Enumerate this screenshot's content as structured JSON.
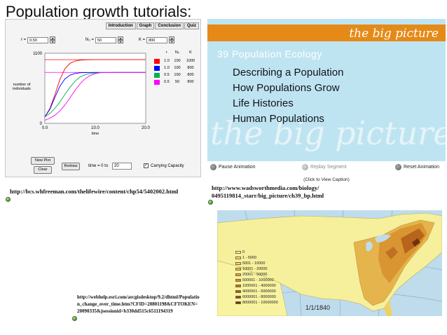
{
  "slide_title": "Population growth tutorials:",
  "sim": {
    "tabs": [
      "Introduction",
      "Graph",
      "Conclusion",
      "Quiz"
    ],
    "params": [
      {
        "label": "r =",
        "value": "0.50"
      },
      {
        "label": "N₀ =",
        "value": "50"
      },
      {
        "label": "K =",
        "value": "800"
      }
    ],
    "y_axis_label": "number of individuals",
    "x_axis_label": "time",
    "y_ticks": [
      "1100",
      "0"
    ],
    "x_ticks": [
      "0.0",
      "10.0",
      "20.0"
    ],
    "legend_headers": [
      "r",
      "N₀",
      "K"
    ],
    "legend_rows": [
      {
        "color": "#ff0000",
        "r": "1.0",
        "n0": "100",
        "k": "1000"
      },
      {
        "color": "#0000ff",
        "r": "1.0",
        "n0": "100",
        "k": "800"
      },
      {
        "color": "#00b050",
        "r": "0.5",
        "n0": "100",
        "k": "800"
      },
      {
        "color": "#ff00ff",
        "r": "0.5",
        "n0": "50",
        "k": "800"
      }
    ],
    "buttons": {
      "new_plot": "New Plot",
      "clear": "Clear",
      "redraw": "Redraw"
    },
    "time_label": "time = 0 to",
    "time_value": "20",
    "carrying_capacity_label": "Carrying Capacity",
    "carrying_capacity_checked": true,
    "url": "http://bcs.whfreeman.com/thelifewire/content/chp54/5402002.html"
  },
  "chart_data": {
    "type": "line",
    "title": "",
    "xlabel": "time",
    "ylabel": "number of individuals",
    "xlim": [
      0,
      20
    ],
    "ylim": [
      0,
      1100
    ],
    "x": [
      0,
      1,
      2,
      3,
      4,
      5,
      6,
      7,
      8,
      9,
      10,
      11,
      12,
      13,
      14,
      15,
      16,
      17,
      18,
      19,
      20
    ],
    "series": [
      {
        "name": "",
        "color": "#ff0000",
        "values": [
          100,
          232,
          451,
          691,
          859,
          943,
          979,
          992,
          997,
          999,
          1000,
          1000,
          1000,
          1000,
          1000,
          1000,
          1000,
          1000,
          1000,
          1000,
          1000
        ]
      },
      {
        "name": "",
        "color": "#0000ff",
        "values": [
          100,
          221,
          409,
          584,
          698,
          757,
          783,
          794,
          798,
          799,
          800,
          800,
          800,
          800,
          800,
          800,
          800,
          800,
          800,
          800,
          800
        ]
      },
      {
        "name": "",
        "color": "#00b050",
        "values": [
          100,
          156,
          236,
          339,
          456,
          569,
          663,
          728,
          763,
          782,
          791,
          796,
          798,
          799,
          800,
          800,
          800,
          800,
          800,
          800,
          800
        ]
      },
      {
        "name": "",
        "color": "#ff00ff",
        "values": [
          50,
          80,
          127,
          197,
          290,
          402,
          519,
          623,
          701,
          751,
          780,
          795,
          798,
          799,
          800,
          800,
          800,
          800,
          800,
          800,
          800
        ]
      }
    ],
    "reference_lines": [
      {
        "y": 1000,
        "color": "#ff0000"
      },
      {
        "y": 800,
        "color": "#ff00ff"
      }
    ]
  },
  "big_picture": {
    "banner": "the big picture",
    "chapter": "39 Population Ecology",
    "items": [
      "Describing a Population",
      "How Populations Grow",
      "Life Histories",
      "Human Populations"
    ],
    "watermark": "the big picture",
    "controls": {
      "pause": "Pause Animation",
      "replay": "Replay Segment",
      "reset": "Reset Animation"
    },
    "caption": "(Click to View Caption)",
    "url_line1": "http://www.wadsworthmedia.com/biology/",
    "url_line2": "0495119814_starr/big_picture/ch39_bp.html"
  },
  "map": {
    "legend": [
      {
        "label": "0",
        "color": "#f7f3a0"
      },
      {
        "label": "1 - 5000",
        "color": "#f4e27a"
      },
      {
        "label": "5001 - 10000",
        "color": "#efd063"
      },
      {
        "label": "10001 - 20000",
        "color": "#e8bd4e"
      },
      {
        "label": "20001 - 50000",
        "color": "#e0a43c"
      },
      {
        "label": "500001 - 1000000",
        "color": "#d18c2b"
      },
      {
        "label": "1000001 - 4000000",
        "color": "#c07022"
      },
      {
        "label": "4000001 - 6000000",
        "color": "#a85a1a"
      },
      {
        "label": "6000001 - 8000000",
        "color": "#8c4513"
      },
      {
        "label": "8000001 - 10000000",
        "color": "#6e320c"
      }
    ],
    "date": "1/1/1840",
    "url_lines": [
      "http://webhelp.esri.com/arcgisdesktop/9.2/dhtml/Populatio",
      "n_change_over_time.htm?CFID=20801198&CFTOKEN=",
      "20090335&jsessionid=b330dd515c6511194319"
    ]
  }
}
